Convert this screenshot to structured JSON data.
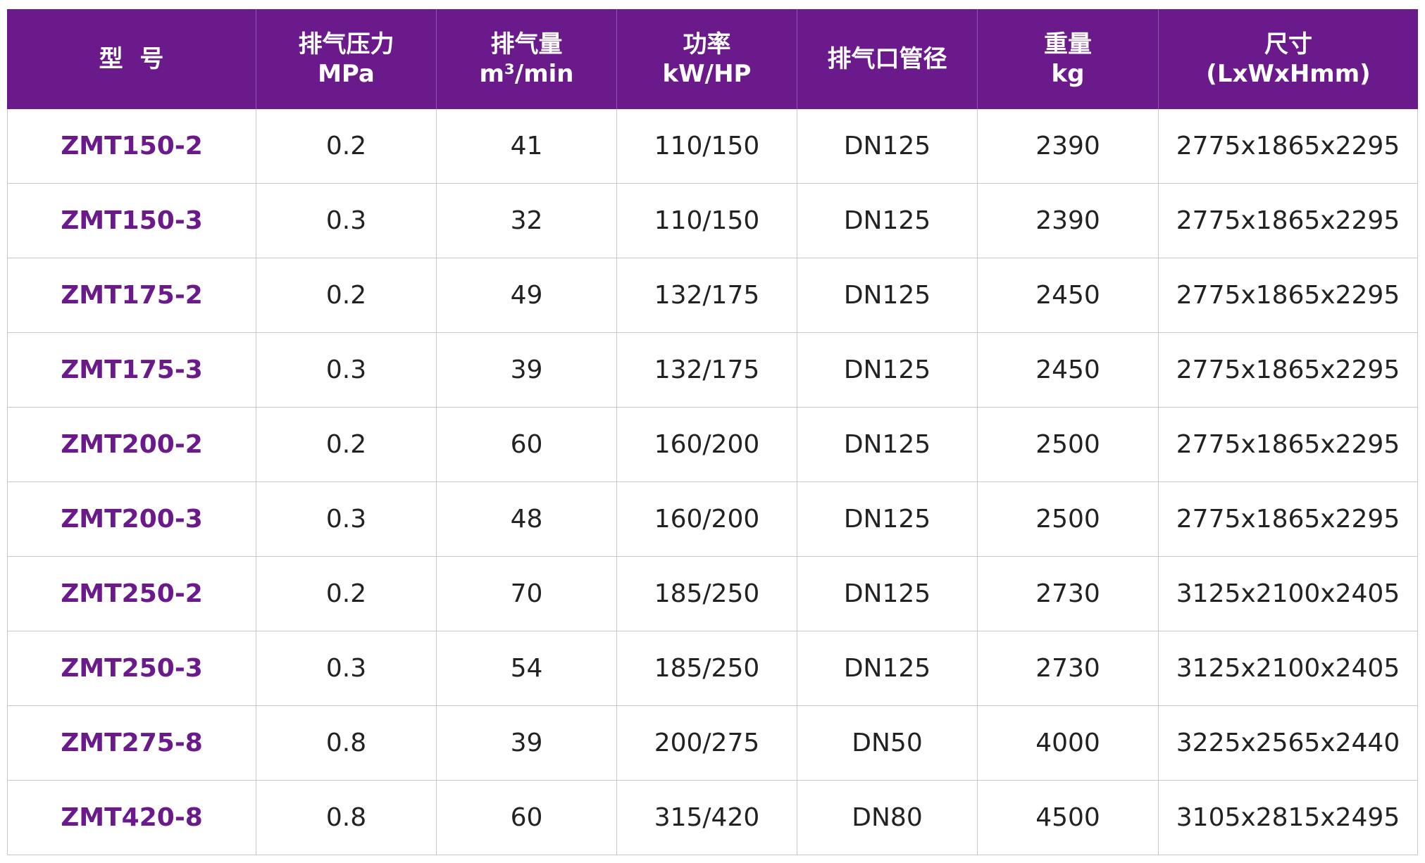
{
  "table": {
    "header": [
      [
        "型  号"
      ],
      [
        "排气压力",
        "MPa"
      ],
      [
        "排气量",
        "m³/min"
      ],
      [
        "功率",
        "kW/HP"
      ],
      [
        "排气口管径"
      ],
      [
        "重量",
        "kg"
      ],
      [
        "尺寸",
        "(LxWxHmm)"
      ]
    ],
    "rows": [
      [
        "ZMT150-2",
        "0.2",
        "41",
        "110/150",
        "DN125",
        "2390",
        "2775x1865x2295"
      ],
      [
        "ZMT150-3",
        "0.3",
        "32",
        "110/150",
        "DN125",
        "2390",
        "2775x1865x2295"
      ],
      [
        "ZMT175-2",
        "0.2",
        "49",
        "132/175",
        "DN125",
        "2450",
        "2775x1865x2295"
      ],
      [
        "ZMT175-3",
        "0.3",
        "39",
        "132/175",
        "DN125",
        "2450",
        "2775x1865x2295"
      ],
      [
        "ZMT200-2",
        "0.2",
        "60",
        "160/200",
        "DN125",
        "2500",
        "2775x1865x2295"
      ],
      [
        "ZMT200-3",
        "0.3",
        "48",
        "160/200",
        "DN125",
        "2500",
        "2775x1865x2295"
      ],
      [
        "ZMT250-2",
        "0.2",
        "70",
        "185/250",
        "DN125",
        "2730",
        "3125x2100x2405"
      ],
      [
        "ZMT250-3",
        "0.3",
        "54",
        "185/250",
        "DN125",
        "2730",
        "3125x2100x2405"
      ],
      [
        "ZMT275-8",
        "0.8",
        "39",
        "200/275",
        "DN50",
        "4000",
        "3225x2565x2440"
      ],
      [
        "ZMT420-8",
        "0.8",
        "60",
        "315/420",
        "DN80",
        "4500",
        "3105x2815x2495"
      ]
    ]
  }
}
